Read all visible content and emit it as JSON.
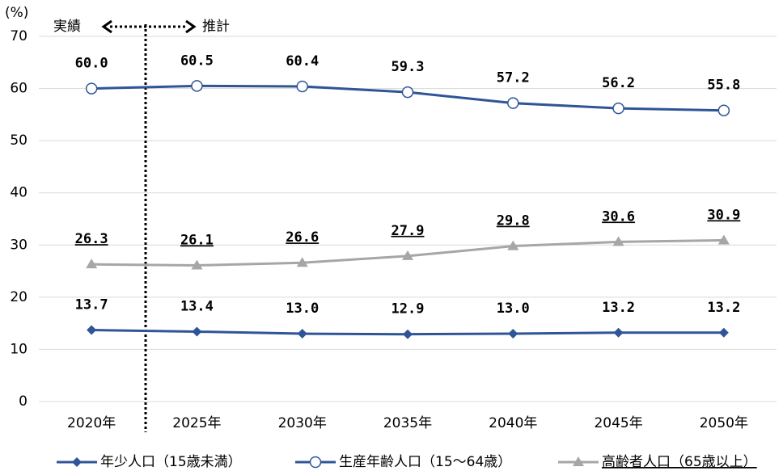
{
  "chart_data": {
    "type": "line",
    "y_label": "(%)",
    "annotations": [
      "実績",
      "推計"
    ],
    "categories": [
      "2020年",
      "2025年",
      "2030年",
      "2035年",
      "2040年",
      "2045年",
      "2050年"
    ],
    "series": [
      {
        "name": "年少人口（15歳未満）",
        "color": "#2f5597",
        "marker": "diamond",
        "values": [
          13.7,
          13.4,
          13.0,
          12.9,
          13.0,
          13.2,
          13.2
        ],
        "value_labels": [
          "13.7",
          "13.4",
          "13.0",
          "12.9",
          "13.0",
          "13.2",
          "13.2"
        ]
      },
      {
        "name": "生産年齢人口（15～64歳）",
        "color": "#2f5597",
        "marker": "circle",
        "values": [
          60.0,
          60.5,
          60.4,
          59.3,
          57.2,
          56.2,
          55.8
        ],
        "value_labels": [
          "60.0",
          "60.5",
          "60.4",
          "59.3",
          "57.2",
          "56.2",
          "55.8"
        ]
      },
      {
        "name": "高齢者人口（65歳以上）",
        "color": "#a6a6a6",
        "marker": "triangle",
        "underline_labels": true,
        "values": [
          26.3,
          26.1,
          26.6,
          27.9,
          29.8,
          30.6,
          30.9
        ],
        "value_labels": [
          "26.3",
          "26.1",
          "26.6",
          "27.9",
          "29.8",
          "30.6",
          "30.9"
        ]
      }
    ],
    "ylim": [
      0,
      70
    ],
    "yticks": [
      0,
      10,
      20,
      30,
      40,
      50,
      60,
      70
    ],
    "grid": true
  }
}
